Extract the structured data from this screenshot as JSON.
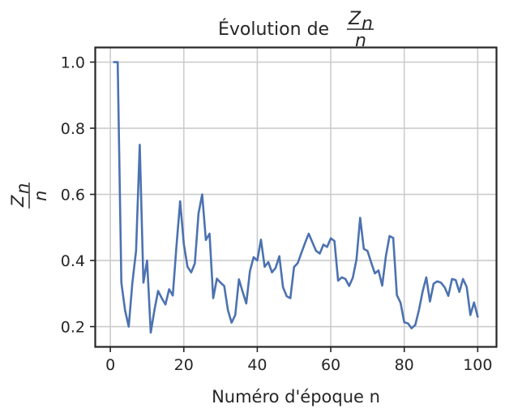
{
  "chart_data": {
    "type": "line",
    "title": "Évolution de",
    "title_fraction": {
      "numerator": "Z",
      "subscript": "n",
      "denominator": "n"
    },
    "xlabel": "Numéro d'époque n",
    "ylabel_fraction": {
      "numerator": "Z",
      "subscript": "n",
      "denominator": "n"
    },
    "xlim": [
      -4,
      105
    ],
    "ylim": [
      0.14,
      1.043
    ],
    "xticks": [
      0,
      20,
      40,
      60,
      80,
      100
    ],
    "xtick_labels": [
      "0",
      "20",
      "40",
      "60",
      "80",
      "100"
    ],
    "yticks": [
      0.2,
      0.4,
      0.6,
      0.8,
      1.0
    ],
    "ytick_labels": [
      "0.2",
      "0.4",
      "0.6",
      "0.8",
      "1.0"
    ],
    "grid": true,
    "legend": false,
    "line_color": "#4c72b0",
    "grid_color": "#cccccc",
    "x": [
      1,
      2,
      3,
      4,
      5,
      6,
      7,
      8,
      9,
      10,
      11,
      12,
      13,
      14,
      15,
      16,
      17,
      18,
      19,
      20,
      21,
      22,
      23,
      24,
      25,
      26,
      27,
      28,
      29,
      30,
      31,
      32,
      33,
      34,
      35,
      36,
      37,
      38,
      39,
      40,
      41,
      42,
      43,
      44,
      45,
      46,
      47,
      48,
      49,
      50,
      51,
      52,
      53,
      54,
      55,
      56,
      57,
      58,
      59,
      60,
      61,
      62,
      63,
      64,
      65,
      66,
      67,
      68,
      69,
      70,
      71,
      72,
      73,
      74,
      75,
      76,
      77,
      78,
      79,
      80,
      81,
      82,
      83,
      84,
      85,
      86,
      87,
      88,
      89,
      90,
      91,
      92,
      93,
      94,
      95,
      96,
      97,
      98,
      99,
      100
    ],
    "y": [
      1.0,
      1.0,
      0.333,
      0.25,
      0.2,
      0.333,
      0.429,
      0.75,
      0.333,
      0.4,
      0.182,
      0.25,
      0.308,
      0.286,
      0.267,
      0.313,
      0.294,
      0.444,
      0.579,
      0.45,
      0.381,
      0.364,
      0.391,
      0.542,
      0.6,
      0.462,
      0.481,
      0.286,
      0.345,
      0.333,
      0.323,
      0.25,
      0.212,
      0.235,
      0.343,
      0.306,
      0.27,
      0.368,
      0.41,
      0.4,
      0.463,
      0.381,
      0.395,
      0.364,
      0.378,
      0.413,
      0.319,
      0.292,
      0.286,
      0.38,
      0.392,
      0.423,
      0.453,
      0.481,
      0.455,
      0.429,
      0.421,
      0.448,
      0.441,
      0.467,
      0.459,
      0.339,
      0.349,
      0.344,
      0.323,
      0.348,
      0.403,
      0.529,
      0.435,
      0.429,
      0.394,
      0.361,
      0.37,
      0.324,
      0.413,
      0.474,
      0.468,
      0.295,
      0.272,
      0.213,
      0.21,
      0.195,
      0.205,
      0.25,
      0.306,
      0.349,
      0.276,
      0.33,
      0.337,
      0.333,
      0.319,
      0.293,
      0.344,
      0.341,
      0.305,
      0.344,
      0.32,
      0.235,
      0.273,
      0.23
    ]
  }
}
